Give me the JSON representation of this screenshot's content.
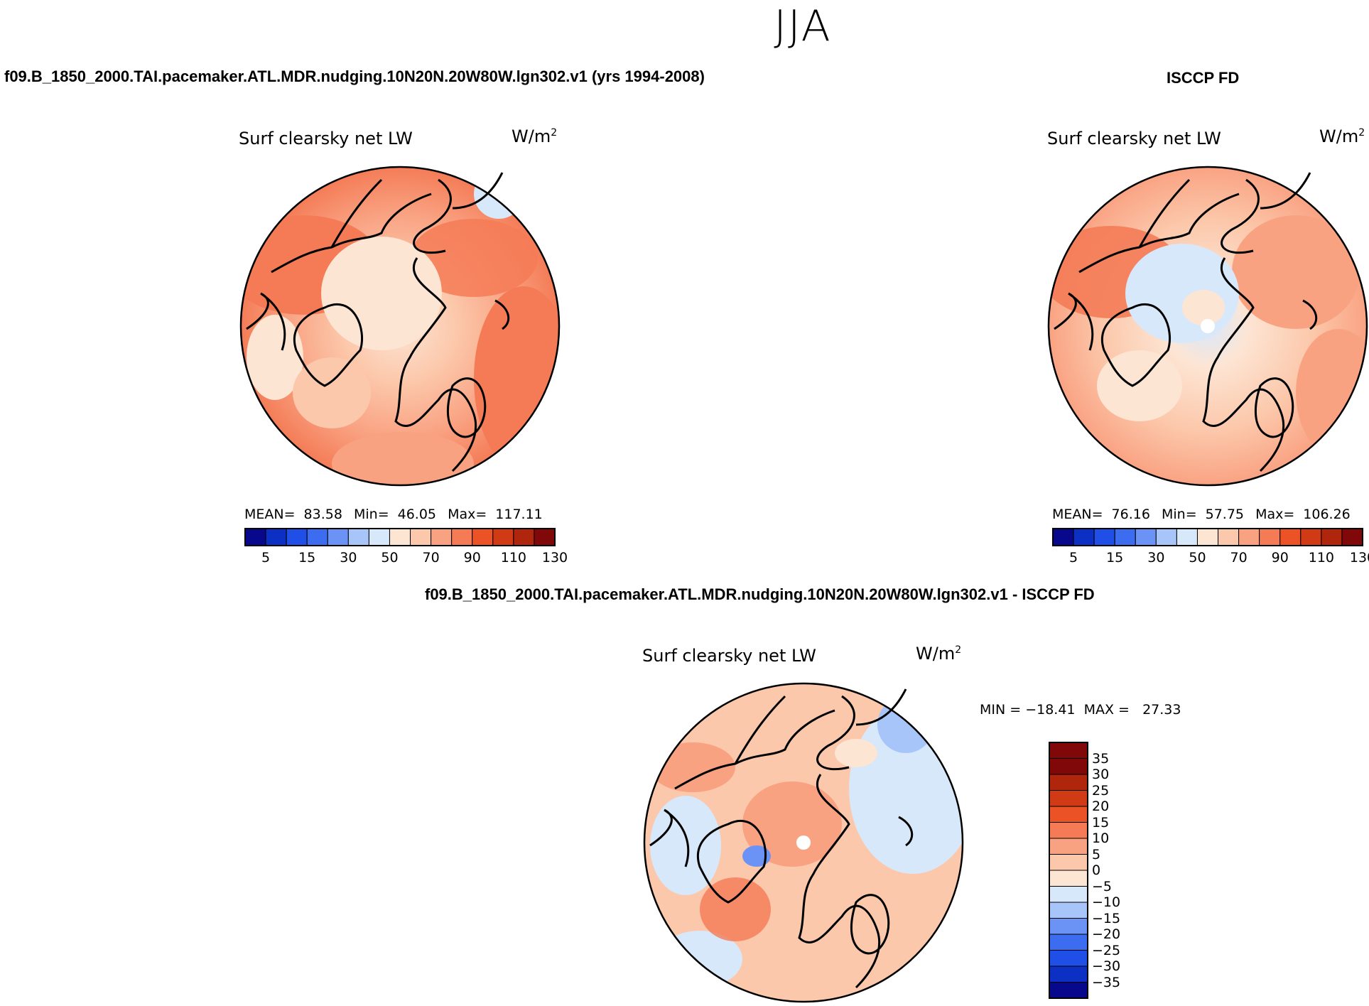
{
  "season": "JJA",
  "panels": [
    {
      "case_title": "f09.B_1850_2000.TAI.pacemaker.ATL.MDR.nudging.10N20N.20W80W.lgn302.v1 (yrs 1994-2008)",
      "field_label": "Surf clearsky net LW",
      "units_base": "W/m",
      "units_exp": "2",
      "mean_label": "MEAN=",
      "mean": "83.58",
      "min_label": "Min=",
      "min": "46.05",
      "max_label": "Max=",
      "max": "117.11"
    },
    {
      "case_title": "ISCCP FD",
      "field_label": "Surf clearsky net LW",
      "units_base": "W/m",
      "units_exp": "2",
      "mean_label": "MEAN=",
      "mean": "76.16",
      "min_label": "Min=",
      "min": "57.75",
      "max_label": "Max=",
      "max": "106.26"
    },
    {
      "case_title": "f09.B_1850_2000.TAI.pacemaker.ATL.MDR.nudging.10N20N.20W80W.lgn302.v1 - ISCCP FD",
      "field_label": "Surf clearsky net LW",
      "units_base": "W/m",
      "units_exp": "2",
      "minmax_text": "MIN = −18.41  MAX =   27.33"
    }
  ],
  "colorbar_abs": {
    "colors": [
      "#08088c",
      "#0c2fc4",
      "#1f4fe6",
      "#3c6df0",
      "#6b93f5",
      "#a7c5f8",
      "#d7e8fb",
      "#fde5d4",
      "#fcc8ab",
      "#f9a282",
      "#f47b56",
      "#eb5326",
      "#d03a14",
      "#b0260c",
      "#800808"
    ],
    "tick_labels": [
      "5",
      "15",
      "30",
      "50",
      "70",
      "90",
      "110",
      "130"
    ]
  },
  "colorbar_diff": {
    "colors": [
      "#800808",
      "#b0260c",
      "#d03a14",
      "#eb5326",
      "#f47b56",
      "#f9a282",
      "#fcc8ab",
      "#fde5d4",
      "#d7e8fb",
      "#a7c5f8",
      "#6b93f5",
      "#3c6df0",
      "#1f4fe6",
      "#0c2fc4",
      "#08088c"
    ],
    "tick_labels": [
      "35",
      "30",
      "25",
      "20",
      "15",
      "10",
      "5",
      "0",
      "−5",
      "−10",
      "−15",
      "−20",
      "−25",
      "−30",
      "−35"
    ]
  },
  "icons": [
    "polar-stereographic-map",
    "coastline-outline"
  ]
}
